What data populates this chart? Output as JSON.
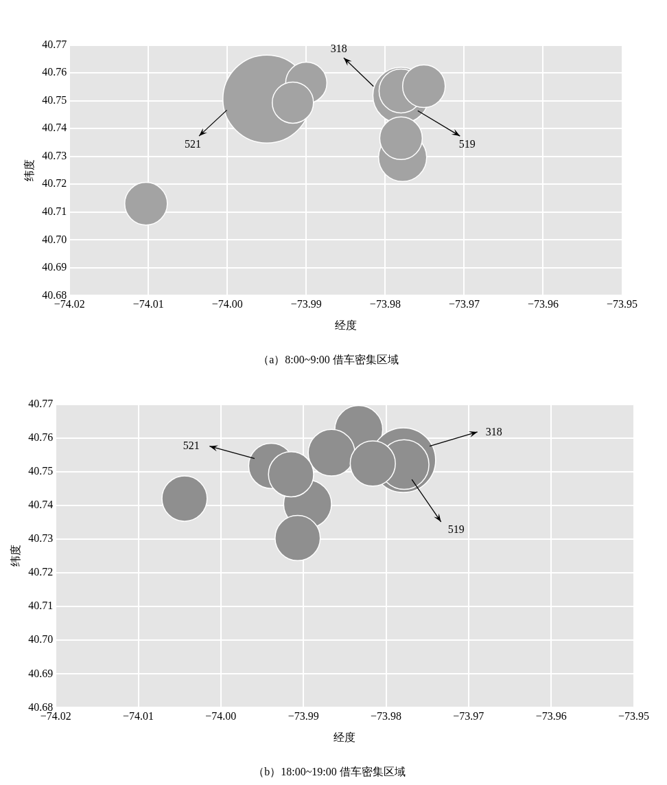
{
  "chart_data": [
    {
      "type": "bubble",
      "title": "（a）8:00~9:00 借车密集区域",
      "xlabel": "经度",
      "ylabel": "纬度",
      "x": [
        -73.995,
        -73.99,
        -73.9917,
        -73.978,
        -73.978,
        -73.9751,
        -73.9778,
        -73.978,
        -74.0103
      ],
      "values": [
        40.7506,
        40.7564,
        40.7493,
        40.7519,
        40.7535,
        40.7552,
        40.7296,
        40.7365,
        40.713
      ],
      "sizes": [
        1,
        0.22,
        0.22,
        0.41,
        0.25,
        0.235,
        0.3,
        0.235,
        0.235
      ],
      "color": "#a3a3a3",
      "xlim": [
        -74.02,
        -73.95
      ],
      "xticks": [
        {
          "value": -74.02,
          "label": "−74.02"
        },
        {
          "value": -74.01,
          "label": "−74.01"
        },
        {
          "value": -74.0,
          "label": "−74.00"
        },
        {
          "value": -73.99,
          "label": "−73.99"
        },
        {
          "value": -73.98,
          "label": "−73.98"
        },
        {
          "value": -73.97,
          "label": "−73.97"
        },
        {
          "value": -73.96,
          "label": "−73.96"
        },
        {
          "value": -73.95,
          "label": "−73.95"
        }
      ],
      "ylim": [
        40.68,
        40.77
      ],
      "yticks": [
        {
          "value": 40.68,
          "label": "40.68"
        },
        {
          "value": 40.69,
          "label": "40.69"
        },
        {
          "value": 40.7,
          "label": "40.70"
        },
        {
          "value": 40.71,
          "label": "40.71"
        },
        {
          "value": 40.72,
          "label": "40.72"
        },
        {
          "value": 40.73,
          "label": "40.73"
        },
        {
          "value": 40.74,
          "label": "40.74"
        },
        {
          "value": 40.75,
          "label": "40.75"
        },
        {
          "value": 40.76,
          "label": "40.76"
        },
        {
          "value": 40.77,
          "label": "40.77"
        }
      ],
      "grid": true,
      "annotations": [
        "521",
        "318",
        "519"
      ]
    },
    {
      "type": "bubble",
      "title": "（b）18:00~19:00 借车密集区域",
      "xlabel": "经度",
      "ylabel": "纬度",
      "x": [
        -73.9833,
        -73.9779,
        -73.9778,
        -73.9866,
        -73.9816,
        -73.9939,
        -73.9895,
        -73.9915,
        -73.9907,
        -74.0044
      ],
      "values": [
        40.7625,
        40.7534,
        40.7521,
        40.7556,
        40.7524,
        40.7517,
        40.7404,
        40.7492,
        40.7303,
        40.742
      ],
      "sizes": [
        0.55,
        1,
        0.59,
        0.52,
        0.49,
        0.49,
        0.55,
        0.49,
        0.49,
        0.49
      ],
      "color": "#8f8f8f",
      "xlim": [
        -74.02,
        -73.95
      ],
      "xticks": [
        {
          "value": -74.02,
          "label": "−74.02"
        },
        {
          "value": -74.01,
          "label": "−74.01"
        },
        {
          "value": -74.0,
          "label": "−74.00"
        },
        {
          "value": -73.99,
          "label": "−73.99"
        },
        {
          "value": -73.98,
          "label": "−73.98"
        },
        {
          "value": -73.97,
          "label": "−73.97"
        },
        {
          "value": -73.96,
          "label": "−73.96"
        },
        {
          "value": -73.95,
          "label": "−73.95"
        }
      ],
      "ylim": [
        40.68,
        40.77
      ],
      "yticks": [
        {
          "value": 40.68,
          "label": "40.68"
        },
        {
          "value": 40.69,
          "label": "40.69"
        },
        {
          "value": 40.7,
          "label": "40.70"
        },
        {
          "value": 40.71,
          "label": "40.71"
        },
        {
          "value": 40.72,
          "label": "40.72"
        },
        {
          "value": 40.73,
          "label": "40.73"
        },
        {
          "value": 40.74,
          "label": "40.74"
        },
        {
          "value": 40.75,
          "label": "40.75"
        },
        {
          "value": 40.76,
          "label": "40.76"
        },
        {
          "value": 40.77,
          "label": "40.77"
        }
      ],
      "grid": true,
      "annotations": [
        "521",
        "318",
        "519"
      ]
    }
  ]
}
